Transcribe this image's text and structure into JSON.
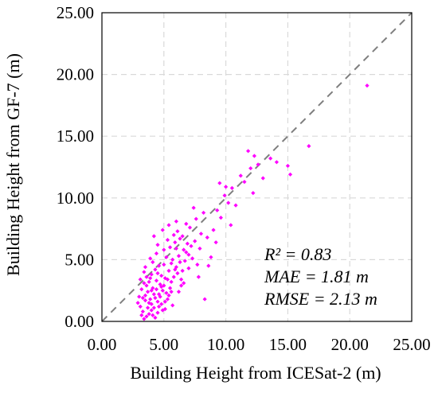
{
  "chart_data": {
    "type": "scatter",
    "title": "",
    "xlabel": "Building Height from ICESat-2 (m)",
    "ylabel": "Building Height from GF-7 (m)",
    "xlim": [
      0,
      25
    ],
    "ylim": [
      0,
      25
    ],
    "xticks": [
      "0.00",
      "5.00",
      "10.00",
      "15.00",
      "20.00",
      "25.00"
    ],
    "yticks": [
      "0.00",
      "5.00",
      "10.00",
      "15.00",
      "20.00",
      "25.00"
    ],
    "grid": true,
    "reference_line": "1:1 dashed",
    "annotations": [
      "R² = 0.83",
      "MAE = 1.81 m",
      "RMSE = 2.13 m"
    ],
    "colors": {
      "points": "#ff00ff",
      "grid": "#d9d9d9",
      "reference": "#7f7f7f"
    },
    "series": [
      {
        "values": [
          [
            3.1,
            1.2
          ],
          [
            3.3,
            0.8
          ],
          [
            3.5,
            2.1
          ],
          [
            3.6,
            0.4
          ],
          [
            3.8,
            1.5
          ],
          [
            4.0,
            0.9
          ],
          [
            4.1,
            2.7
          ],
          [
            4.3,
            0.3
          ],
          [
            3.4,
            3.1
          ],
          [
            3.7,
            2.4
          ],
          [
            3.9,
            1.8
          ],
          [
            4.2,
            1.1
          ],
          [
            4.4,
            3.3
          ],
          [
            4.6,
            2.2
          ],
          [
            4.8,
            1.4
          ],
          [
            5.0,
            2.9
          ],
          [
            3.2,
            2.6
          ],
          [
            3.5,
            1.7
          ],
          [
            3.8,
            0.6
          ],
          [
            4.0,
            3.8
          ],
          [
            4.3,
            1.9
          ],
          [
            4.5,
            0.7
          ],
          [
            4.7,
            3.0
          ],
          [
            4.9,
            2.5
          ],
          [
            5.1,
            1.6
          ],
          [
            5.3,
            3.4
          ],
          [
            3.6,
            2.9
          ],
          [
            3.9,
            3.5
          ],
          [
            4.1,
            0.5
          ],
          [
            4.4,
            2.6
          ],
          [
            4.6,
            1.2
          ],
          [
            4.8,
            3.7
          ],
          [
            5.2,
            2.3
          ],
          [
            5.4,
            4.1
          ],
          [
            5.6,
            3.2
          ],
          [
            3.3,
            1.9
          ],
          [
            3.7,
            1.1
          ],
          [
            4.2,
            2.2
          ],
          [
            4.5,
            3.9
          ],
          [
            4.9,
            0.9
          ],
          [
            5.5,
            2.7
          ],
          [
            5.8,
            3.6
          ],
          [
            6.0,
            4.4
          ],
          [
            3.4,
            0.2
          ],
          [
            3.8,
            3.2
          ],
          [
            4.0,
            1.4
          ],
          [
            4.7,
            2.0
          ],
          [
            5.0,
            4.6
          ],
          [
            5.3,
            1.8
          ],
          [
            5.7,
            5.0
          ],
          [
            6.1,
            3.9
          ],
          [
            6.3,
            4.8
          ],
          [
            3.0,
            2.0
          ],
          [
            3.2,
            0.5
          ],
          [
            3.6,
            3.6
          ],
          [
            4.3,
            4.2
          ],
          [
            4.8,
            2.8
          ],
          [
            5.1,
            3.5
          ],
          [
            5.4,
            2.1
          ],
          [
            5.9,
            4.2
          ],
          [
            6.2,
            5.3
          ],
          [
            6.5,
            4.1
          ],
          [
            6.8,
            5.6
          ],
          [
            4.1,
            4.8
          ],
          [
            4.6,
            4.5
          ],
          [
            5.2,
            5.2
          ],
          [
            5.6,
            4.7
          ],
          [
            6.0,
            5.9
          ],
          [
            6.4,
            3.4
          ],
          [
            6.7,
            4.9
          ],
          [
            7.0,
            5.4
          ],
          [
            7.2,
            6.1
          ],
          [
            4.4,
            5.5
          ],
          [
            5.0,
            5.8
          ],
          [
            5.5,
            6.0
          ],
          [
            5.9,
            6.4
          ],
          [
            6.3,
            6.7
          ],
          [
            6.6,
            5.8
          ],
          [
            6.9,
            6.3
          ],
          [
            7.3,
            5.1
          ],
          [
            3.9,
            5.1
          ],
          [
            4.5,
            6.2
          ],
          [
            5.3,
            6.6
          ],
          [
            5.8,
            7.0
          ],
          [
            6.1,
            7.3
          ],
          [
            6.5,
            6.9
          ],
          [
            7.1,
            7.6
          ],
          [
            7.5,
            6.5
          ],
          [
            4.2,
            6.9
          ],
          [
            4.9,
            7.4
          ],
          [
            5.4,
            7.8
          ],
          [
            6.0,
            8.1
          ],
          [
            6.8,
            7.9
          ],
          [
            7.6,
            8.3
          ],
          [
            8.0,
            7.1
          ],
          [
            8.2,
            8.8
          ],
          [
            7.4,
            9.2
          ],
          [
            6.4,
            2.9
          ],
          [
            7.0,
            4.3
          ],
          [
            7.8,
            3.6
          ],
          [
            8.3,
            1.8
          ],
          [
            5.7,
            1.3
          ],
          [
            6.2,
            2.4
          ],
          [
            3.5,
            4.4
          ],
          [
            3.1,
            3.4
          ],
          [
            2.9,
            1.5
          ],
          [
            3.4,
            4.0
          ],
          [
            4.0,
            2.5
          ],
          [
            4.5,
            1.6
          ],
          [
            5.1,
            1.0
          ],
          [
            5.6,
            2.4
          ],
          [
            6.6,
            3.1
          ],
          [
            7.7,
            4.6
          ],
          [
            8.5,
            6.8
          ],
          [
            9.0,
            7.4
          ],
          [
            9.3,
            9.0
          ],
          [
            9.6,
            8.4
          ],
          [
            9.9,
            10.2
          ],
          [
            10.2,
            9.6
          ],
          [
            10.5,
            10.8
          ],
          [
            9.5,
            11.2
          ],
          [
            10.0,
            10.9
          ],
          [
            10.8,
            9.4
          ],
          [
            11.2,
            11.8
          ],
          [
            11.5,
            11.3
          ],
          [
            12.0,
            12.4
          ],
          [
            11.8,
            13.8
          ],
          [
            12.3,
            13.4
          ],
          [
            12.6,
            12.7
          ],
          [
            13.0,
            11.6
          ],
          [
            12.2,
            10.4
          ],
          [
            14.1,
            12.9
          ],
          [
            13.6,
            13.2
          ],
          [
            15.0,
            12.6
          ],
          [
            15.2,
            11.9
          ],
          [
            16.7,
            14.2
          ],
          [
            21.4,
            19.1
          ],
          [
            8.8,
            5.2
          ],
          [
            9.2,
            6.4
          ],
          [
            7.9,
            5.9
          ],
          [
            10.4,
            7.8
          ],
          [
            8.6,
            4.5
          ]
        ]
      }
    ]
  }
}
